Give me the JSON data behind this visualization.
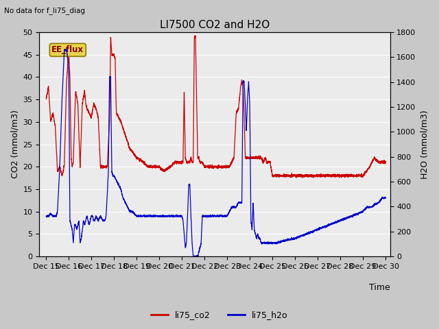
{
  "title": "LI7500 CO2 and H2O",
  "subtitle": "No data for f_li75_diag",
  "xlabel": "Time",
  "ylabel_left": "CO2 (mmol/m3)",
  "ylabel_right": "H2O (mmol/m3)",
  "ylim_left": [
    0,
    50
  ],
  "ylim_right": [
    0,
    1800
  ],
  "yticks_left": [
    0,
    5,
    10,
    15,
    20,
    25,
    30,
    35,
    40,
    45,
    50
  ],
  "yticks_right": [
    0,
    200,
    400,
    600,
    800,
    1000,
    1200,
    1400,
    1600,
    1800
  ],
  "xlim": [
    14.7,
    30.2
  ],
  "xtick_labels": [
    "Dec 15",
    "Dec 16",
    "Dec 17",
    "Dec 18",
    "Dec 19",
    "Dec 20",
    "Dec 21",
    "Dec 22",
    "Dec 23",
    "Dec 24",
    "Dec 25",
    "Dec 26",
    "Dec 27",
    "Dec 28",
    "Dec 29",
    "Dec 30"
  ],
  "xtick_positions": [
    15,
    16,
    17,
    18,
    19,
    20,
    21,
    22,
    23,
    24,
    25,
    26,
    27,
    28,
    29,
    30
  ],
  "color_co2": "#cc0000",
  "color_h2o": "#0000cc",
  "legend_label_co2": "li75_co2",
  "legend_label_h2o": "li75_h2o",
  "ee_flux_label": "EE_flux",
  "plot_bg_color": "#ebebeb",
  "grid_color": "white",
  "fig_bg_color": "#c8c8c8",
  "title_fontsize": 11,
  "label_fontsize": 9,
  "tick_fontsize": 8
}
